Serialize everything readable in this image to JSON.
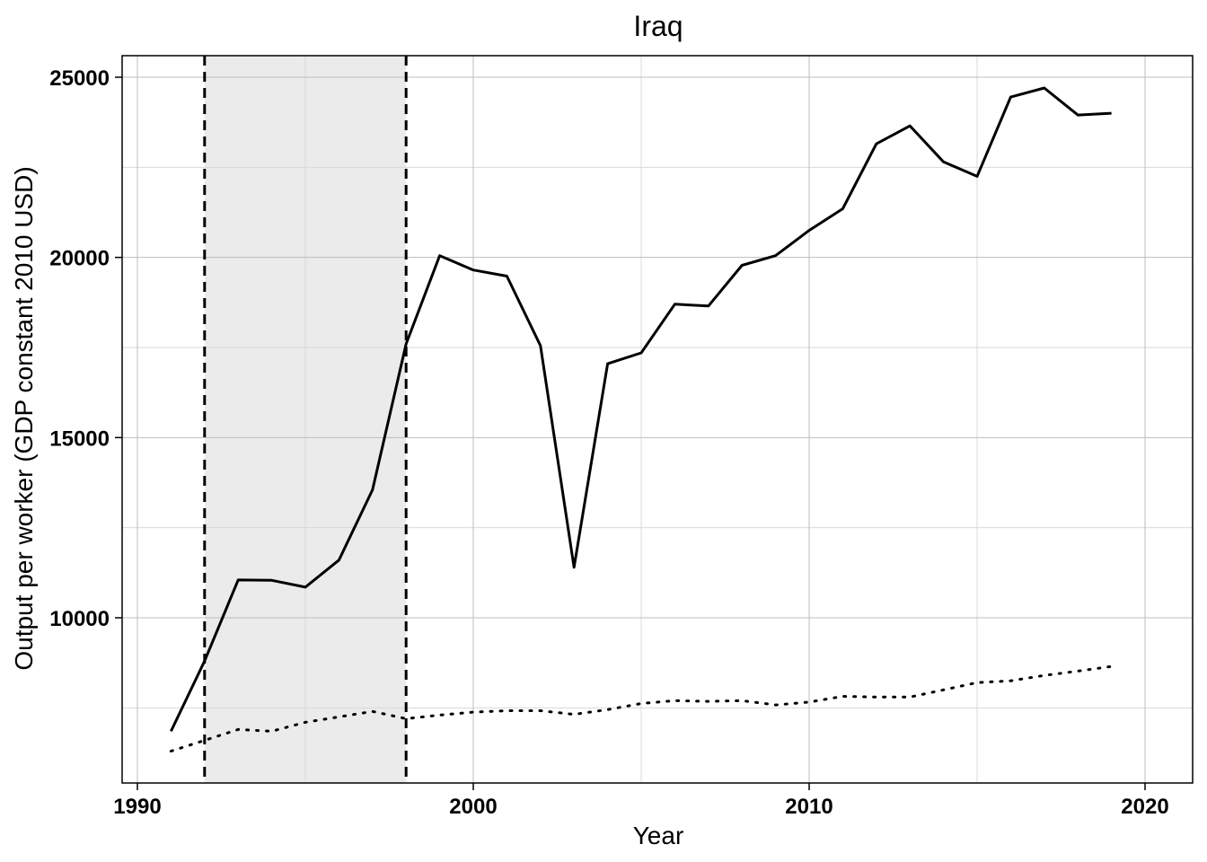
{
  "chart_data": {
    "type": "line",
    "title": "Iraq",
    "xlabel": "Year",
    "ylabel": "Output per worker (GDP constant 2010 USD)",
    "xlim": [
      1990,
      2020
    ],
    "ylim": [
      5000,
      25000
    ],
    "xticks": [
      1990,
      2000,
      2010,
      2020
    ],
    "yticks": [
      10000,
      15000,
      20000,
      25000
    ],
    "grid": true,
    "legend": "none",
    "shaded_period": {
      "start": 1992,
      "end": 1998,
      "color": "#ebebeb"
    },
    "vlines": [
      1992,
      1998
    ],
    "x": [
      1991,
      1992,
      1993,
      1994,
      1995,
      1996,
      1997,
      1998,
      1999,
      2000,
      2001,
      2002,
      2003,
      2004,
      2005,
      2006,
      2007,
      2008,
      2009,
      2010,
      2011,
      2012,
      2013,
      2014,
      2015,
      2016,
      2017,
      2018,
      2019
    ],
    "series": [
      {
        "style": "solid",
        "color": "#000000",
        "values": [
          6850,
          8800,
          11050,
          11040,
          10850,
          11600,
          13550,
          17600,
          20050,
          19650,
          19480,
          17550,
          11400,
          17050,
          17350,
          18700,
          18650,
          19780,
          20050,
          20750,
          21350,
          23150,
          23650,
          22650,
          22250,
          24450,
          24700,
          23950,
          24000
        ]
      },
      {
        "style": "dotted",
        "color": "#000000",
        "values": [
          6300,
          6600,
          6900,
          6850,
          7100,
          7250,
          7400,
          7200,
          7300,
          7380,
          7420,
          7420,
          7320,
          7450,
          7620,
          7700,
          7680,
          7700,
          7580,
          7660,
          7820,
          7800,
          7800,
          8000,
          8200,
          8250,
          8400,
          8520,
          8650
        ]
      }
    ]
  }
}
